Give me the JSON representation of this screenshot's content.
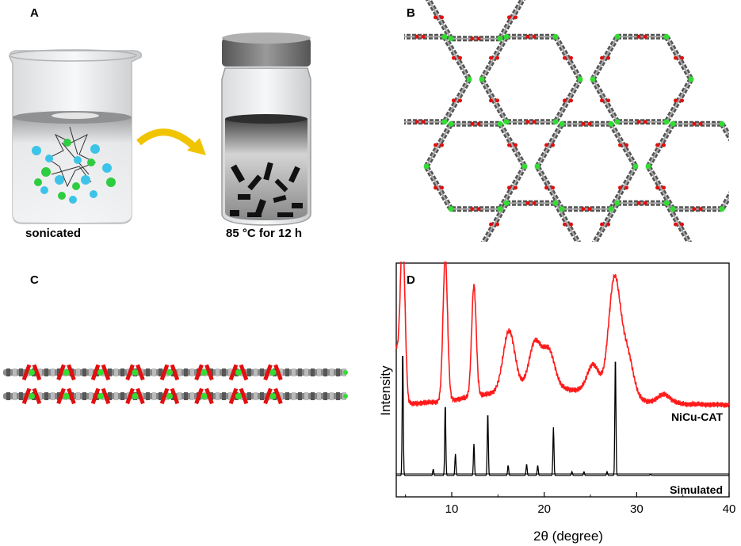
{
  "panels": {
    "a": {
      "letter": "A",
      "caption_left": "sonicated",
      "caption_right": "85 °C for 12 h"
    },
    "b": {
      "letter": "B"
    },
    "c": {
      "letter": "C"
    },
    "d": {
      "letter": "D"
    }
  },
  "colors": {
    "red_trace": "#ff1a1a",
    "black_trace": "#000000",
    "arrow": "#f0c400",
    "sphere_blue": "#3cc4e8",
    "sphere_green": "#2ecc40",
    "oxygen_red": "#e01010",
    "metal_green": "#33dd33",
    "carbon_gray": "#555555"
  },
  "chart_data": {
    "type": "line",
    "xlabel": "2θ (degree)",
    "ylabel": "Intensity",
    "xlim": [
      4,
      40
    ],
    "xticks": [
      10,
      20,
      30,
      40
    ],
    "series": [
      {
        "name": "NiCu-CAT",
        "color": "#ff1a1a",
        "peaks": [
          [
            4.7,
            1.0
          ],
          [
            9.3,
            1.0
          ],
          [
            12.4,
            0.78
          ],
          [
            16.2,
            0.42
          ],
          [
            19.0,
            0.32
          ],
          [
            20.5,
            0.26
          ],
          [
            25.3,
            0.2
          ],
          [
            27.6,
            0.82
          ],
          [
            29.0,
            0.3
          ],
          [
            33.0,
            0.06
          ]
        ]
      },
      {
        "name": "Simulated",
        "color": "#000000",
        "peaks": [
          [
            4.7,
            1.0
          ],
          [
            8.0,
            0.05
          ],
          [
            9.3,
            0.57
          ],
          [
            10.4,
            0.17
          ],
          [
            12.4,
            0.25
          ],
          [
            13.9,
            0.5
          ],
          [
            16.1,
            0.08
          ],
          [
            18.1,
            0.09
          ],
          [
            19.3,
            0.08
          ],
          [
            21.0,
            0.38
          ],
          [
            23.0,
            0.03
          ],
          [
            24.3,
            0.03
          ],
          [
            26.8,
            0.03
          ],
          [
            27.7,
            0.95
          ],
          [
            31.5,
            0.01
          ]
        ]
      }
    ]
  }
}
